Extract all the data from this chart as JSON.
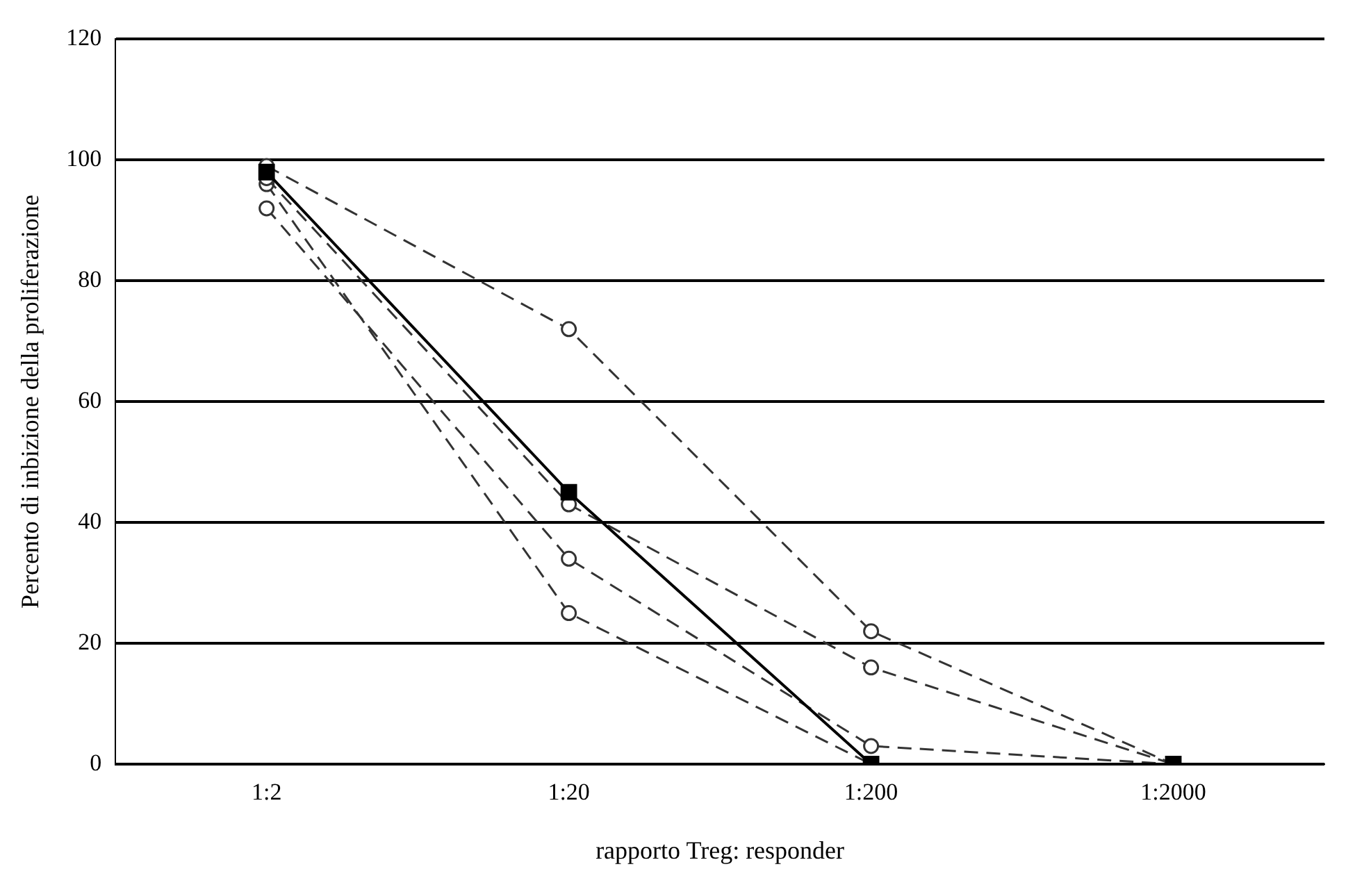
{
  "chart_data": {
    "type": "line",
    "xlabel": "rapporto Treg: responder",
    "ylabel": "Percento di inbizione della proliferazione",
    "categories": [
      "1:2",
      "1:20",
      "1:200",
      "1:2000"
    ],
    "series": [
      {
        "color": "#000000",
        "values": [
          98,
          45,
          0,
          0
        ],
        "marker": "square",
        "line_style": "solid"
      },
      {
        "color": "#333333",
        "values": [
          99,
          72,
          22,
          0
        ],
        "marker": "circle",
        "line_style": "dashed"
      },
      {
        "color": "#333333",
        "values": [
          97,
          43,
          16,
          0
        ],
        "marker": "circle",
        "line_style": "dashed"
      },
      {
        "color": "#333333",
        "values": [
          92,
          34,
          3,
          0
        ],
        "marker": "circle",
        "line_style": "dashed"
      },
      {
        "color": "#333333",
        "values": [
          96,
          25,
          0,
          0
        ],
        "marker": "circle",
        "line_style": "dashed"
      }
    ],
    "ylim": [
      0,
      120
    ],
    "yticks": [
      0,
      20,
      40,
      60,
      80,
      100,
      120
    ],
    "grid": "y",
    "legend": false
  }
}
